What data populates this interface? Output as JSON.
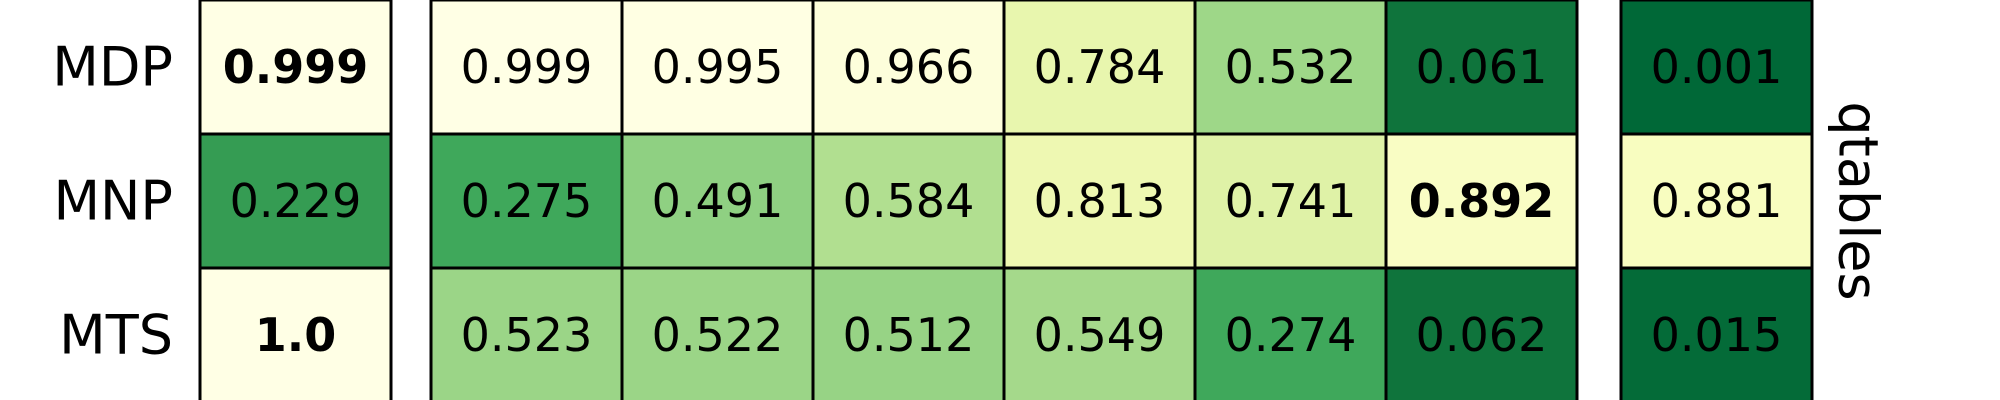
{
  "chart_data": {
    "type": "heatmap",
    "rows": [
      "MDP",
      "MNP",
      "MTS"
    ],
    "side_label": "qtables",
    "colormap": [
      "#ffffe5",
      "#f7fcb9",
      "#d9f0a3",
      "#addd8e",
      "#78c679",
      "#41ab5d",
      "#238443",
      "#006837"
    ],
    "groups": [
      {
        "columns": 1,
        "values": [
          [
            0.999
          ],
          [
            0.229
          ],
          [
            1.0
          ]
        ],
        "labels": [
          [
            "0.999"
          ],
          [
            "0.229"
          ],
          [
            "1.0"
          ]
        ],
        "bold": [
          [
            true
          ],
          [
            false
          ],
          [
            true
          ]
        ]
      },
      {
        "columns": 6,
        "values": [
          [
            0.999,
            0.995,
            0.966,
            0.784,
            0.532,
            0.061
          ],
          [
            0.275,
            0.491,
            0.584,
            0.813,
            0.741,
            0.892
          ],
          [
            0.523,
            0.522,
            0.512,
            0.549,
            0.274,
            0.062
          ]
        ],
        "labels": [
          [
            "0.999",
            "0.995",
            "0.966",
            "0.784",
            "0.532",
            "0.061"
          ],
          [
            "0.275",
            "0.491",
            "0.584",
            "0.813",
            "0.741",
            "0.892"
          ],
          [
            "0.523",
            "0.522",
            "0.512",
            "0.549",
            "0.274",
            "0.062"
          ]
        ],
        "bold": [
          [
            false,
            false,
            false,
            false,
            false,
            false
          ],
          [
            false,
            false,
            false,
            false,
            false,
            true
          ],
          [
            false,
            false,
            false,
            false,
            false,
            false
          ]
        ]
      },
      {
        "columns": 1,
        "values": [
          [
            0.001
          ],
          [
            0.881
          ],
          [
            0.015
          ]
        ],
        "labels": [
          [
            "0.001"
          ],
          [
            "0.881"
          ],
          [
            "0.015"
          ]
        ],
        "bold": [
          [
            false
          ],
          [
            false
          ],
          [
            false
          ]
        ]
      }
    ]
  }
}
